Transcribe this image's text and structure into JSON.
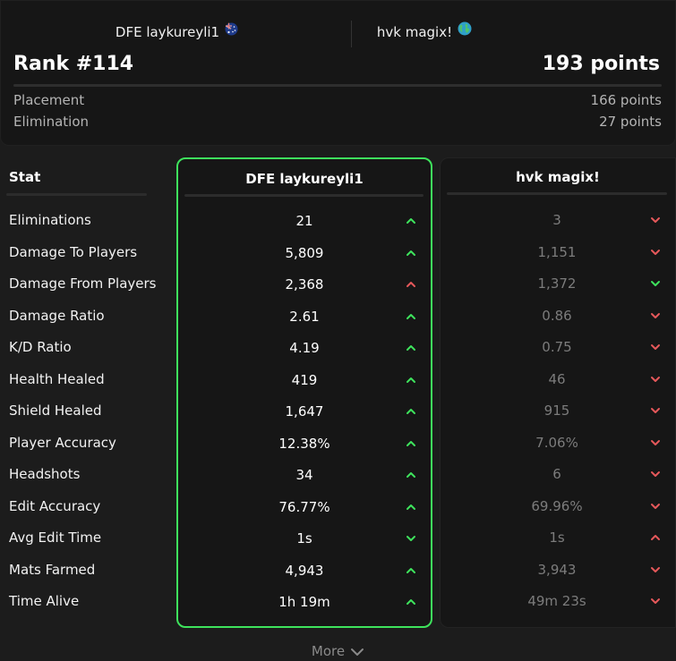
{
  "header": {
    "player1_name": "DFE laykureyli1",
    "player1_flag": "australia-flag-icon",
    "player2_name": "hvk magix!",
    "player2_flag": "globe-icon",
    "rank": "Rank #114",
    "points": "193 points",
    "placement_label": "Placement",
    "placement_value": "166 points",
    "elimination_label": "Elimination",
    "elimination_value": "27 points"
  },
  "table": {
    "stat_header": "Stat",
    "player1_header": "DFE laykureyli1",
    "player2_header": "hvk magix!",
    "rows": [
      {
        "stat": "Eliminations",
        "p1": "21",
        "p1_arrow": "up",
        "p1_color": "#3ee35c",
        "p2": "3",
        "p2_arrow": "down",
        "p2_color": "#e5585a"
      },
      {
        "stat": "Damage To Players",
        "p1": "5,809",
        "p1_arrow": "up",
        "p1_color": "#3ee35c",
        "p2": "1,151",
        "p2_arrow": "down",
        "p2_color": "#e5585a"
      },
      {
        "stat": "Damage From Players",
        "p1": "2,368",
        "p1_arrow": "up",
        "p1_color": "#e5585a",
        "p2": "1,372",
        "p2_arrow": "down",
        "p2_color": "#3ee35c"
      },
      {
        "stat": "Damage Ratio",
        "p1": "2.61",
        "p1_arrow": "up",
        "p1_color": "#3ee35c",
        "p2": "0.86",
        "p2_arrow": "down",
        "p2_color": "#e5585a"
      },
      {
        "stat": "K/D Ratio",
        "p1": "4.19",
        "p1_arrow": "up",
        "p1_color": "#3ee35c",
        "p2": "0.75",
        "p2_arrow": "down",
        "p2_color": "#e5585a"
      },
      {
        "stat": "Health Healed",
        "p1": "419",
        "p1_arrow": "up",
        "p1_color": "#3ee35c",
        "p2": "46",
        "p2_arrow": "down",
        "p2_color": "#e5585a"
      },
      {
        "stat": "Shield Healed",
        "p1": "1,647",
        "p1_arrow": "up",
        "p1_color": "#3ee35c",
        "p2": "915",
        "p2_arrow": "down",
        "p2_color": "#e5585a"
      },
      {
        "stat": "Player Accuracy",
        "p1": "12.38%",
        "p1_arrow": "up",
        "p1_color": "#3ee35c",
        "p2": "7.06%",
        "p2_arrow": "down",
        "p2_color": "#e5585a"
      },
      {
        "stat": "Headshots",
        "p1": "34",
        "p1_arrow": "up",
        "p1_color": "#3ee35c",
        "p2": "6",
        "p2_arrow": "down",
        "p2_color": "#e5585a"
      },
      {
        "stat": "Edit Accuracy",
        "p1": "76.77%",
        "p1_arrow": "up",
        "p1_color": "#3ee35c",
        "p2": "69.96%",
        "p2_arrow": "down",
        "p2_color": "#e5585a"
      },
      {
        "stat": "Avg Edit Time",
        "p1": "1s",
        "p1_arrow": "down",
        "p1_color": "#3ee35c",
        "p2": "1s",
        "p2_arrow": "up",
        "p2_color": "#e5585a"
      },
      {
        "stat": "Mats Farmed",
        "p1": "4,943",
        "p1_arrow": "up",
        "p1_color": "#3ee35c",
        "p2": "3,943",
        "p2_arrow": "down",
        "p2_color": "#e5585a"
      },
      {
        "stat": "Time Alive",
        "p1": "1h 19m",
        "p1_arrow": "up",
        "p1_color": "#3ee35c",
        "p2": "49m 23s",
        "p2_arrow": "down",
        "p2_color": "#e5585a"
      }
    ]
  },
  "more_label": "More"
}
